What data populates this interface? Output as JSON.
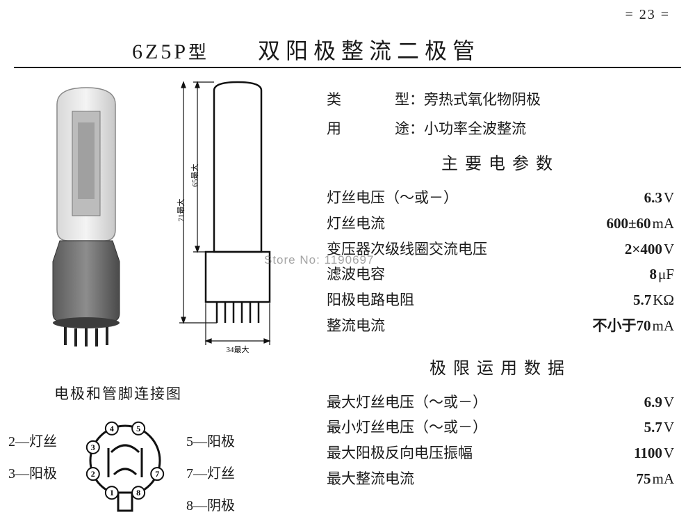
{
  "page_number": "= 23 =",
  "header": {
    "model": "6Z5P",
    "model_suffix": "型",
    "title": "双阳极整流二极管"
  },
  "watermark": "Store No: 1190697",
  "spec_header": {
    "rows": [
      {
        "k": "类",
        "k2": "型：",
        "v": "旁热式氧化物阴极"
      },
      {
        "k": "用",
        "k2": "途：",
        "v": "小功率全波整流"
      }
    ]
  },
  "main_params": {
    "heading": "主要电参数",
    "rows": [
      {
        "label": "灯丝电压（～或－）",
        "value": "6.3",
        "unit": "V"
      },
      {
        "label": "灯丝电流",
        "value": "600±60",
        "unit": "mA"
      },
      {
        "label": "变压器次级线圈交流电压",
        "value": "2×400",
        "unit": "V"
      },
      {
        "label": "滤波电容",
        "value": "8",
        "unit": "μF"
      },
      {
        "label": "阳极电路电阻",
        "value": "5.7",
        "unit": "KΩ"
      },
      {
        "label": "整流电流",
        "value": "不小于70",
        "unit": "mA"
      }
    ]
  },
  "limit_params": {
    "heading": "极限运用数据",
    "rows": [
      {
        "label": "最大灯丝电压（～或－）",
        "value": "6.9",
        "unit": "V"
      },
      {
        "label": "最小灯丝电压（～或－）",
        "value": "5.7",
        "unit": "V"
      },
      {
        "label": "最大阳极反向电压振幅",
        "value": "1100",
        "unit": "V"
      },
      {
        "label": "最大整流电流",
        "value": "75",
        "unit": "mA"
      }
    ]
  },
  "pinout": {
    "title": "电极和管脚连接图",
    "left": [
      {
        "text": "2—灯丝"
      },
      {
        "text": "3—阳极"
      }
    ],
    "right": [
      {
        "text": "5—阳极"
      },
      {
        "text": "7—灯丝"
      },
      {
        "text": "8—阴极"
      }
    ],
    "pins": [
      "1",
      "2",
      "3",
      "4",
      "5",
      "7",
      "8"
    ]
  },
  "dimensions": {
    "height_max": "65最大",
    "overall_max": "71最大",
    "width_max": "34最大"
  },
  "colors": {
    "ink": "#1a1a1a",
    "bg": "#ffffff",
    "stroke": "#111111",
    "shade": "#9a9a9a"
  }
}
